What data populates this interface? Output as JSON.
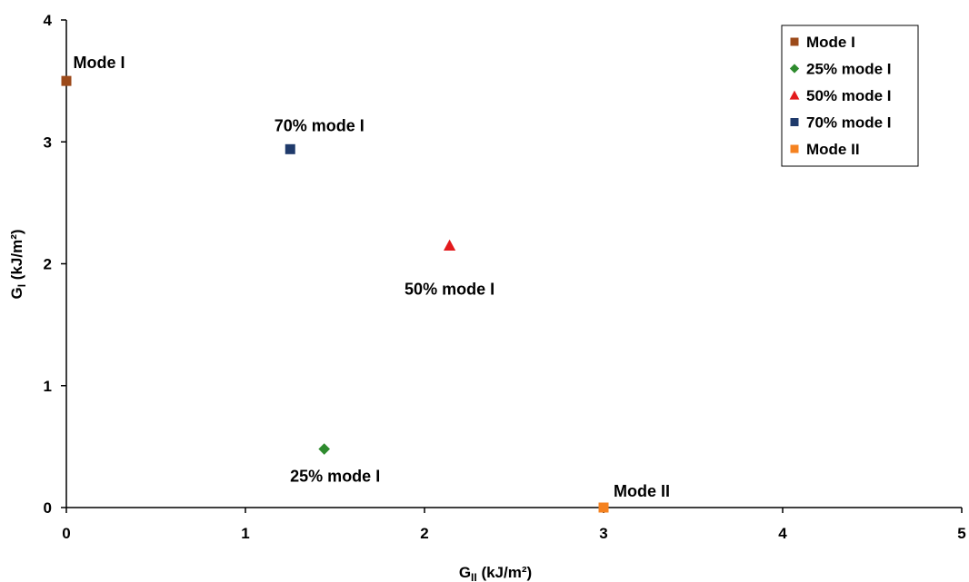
{
  "chart_data": {
    "type": "scatter",
    "title": "",
    "xlabel": {
      "main": "G",
      "sub": "II",
      "unit": " (kJ/m²)"
    },
    "ylabel": {
      "main": "G",
      "sub": "I",
      "unit": " (kJ/m²)"
    },
    "xlim": [
      0,
      5
    ],
    "ylim": [
      0,
      4
    ],
    "xticks": [
      "0",
      "1",
      "2",
      "3",
      "4",
      "5"
    ],
    "yticks": [
      "0",
      "1",
      "2",
      "3",
      "4"
    ],
    "grid": false,
    "legend_position": "top-right",
    "series": [
      {
        "name": "Mode I",
        "marker": "square",
        "color": "#9C4A1A",
        "x": 0,
        "y": 3.5,
        "label": "Mode I"
      },
      {
        "name": "25% mode I",
        "marker": "diamond",
        "color": "#2E8B2E",
        "x": 1.44,
        "y": 0.48,
        "label": "25% mode I"
      },
      {
        "name": "50% mode I",
        "marker": "triangle",
        "color": "#E31A1C",
        "x": 2.14,
        "y": 2.15,
        "label": "50% mode I"
      },
      {
        "name": "70% mode I",
        "marker": "square",
        "color": "#1F3A6B",
        "x": 1.25,
        "y": 2.94,
        "label": "70% mode I"
      },
      {
        "name": "Mode II",
        "marker": "square",
        "color": "#F58220",
        "x": 3.0,
        "y": 0,
        "label": "Mode II"
      }
    ]
  }
}
